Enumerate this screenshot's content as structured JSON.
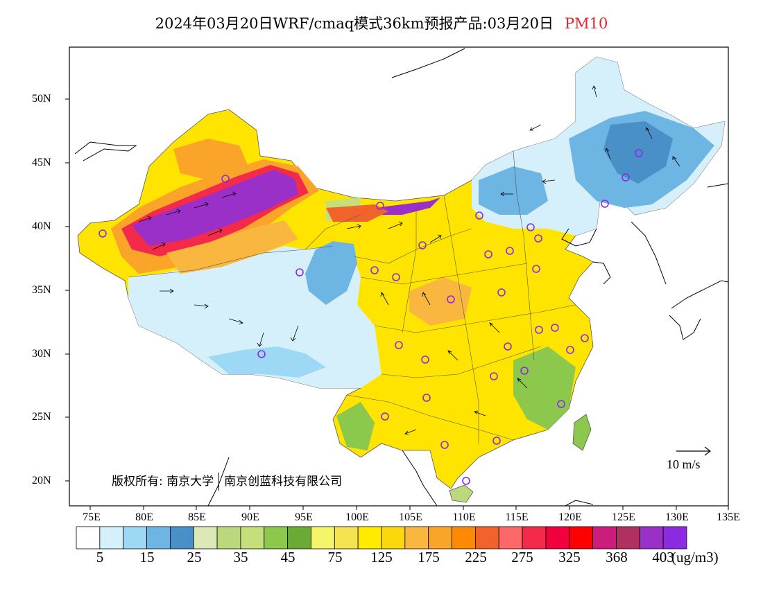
{
  "title": {
    "main": "2024年03月20日WRF/cmaq模式36km预报产品:03月20日",
    "variable": "PM10"
  },
  "lat_labels": [
    "50N",
    "45N",
    "40N",
    "35N",
    "30N",
    "25N",
    "20N"
  ],
  "lon_labels": [
    "75E",
    "80E",
    "85E",
    "90E",
    "95E",
    "100E",
    "105E",
    "110E",
    "115E",
    "120E",
    "125E",
    "130E",
    "135E"
  ],
  "colorbar": {
    "colors": [
      "#ffffff",
      "#d6f0fb",
      "#9dd8f5",
      "#6db5e2",
      "#4a90c8",
      "#dce9b6",
      "#bcd87c",
      "#c5e07a",
      "#8cc84b",
      "#6aaa35",
      "#f5f56a",
      "#f3e34e",
      "#ffeb00",
      "#fbd80b",
      "#f9b73f",
      "#faa52a",
      "#fc8a05",
      "#f2632b",
      "#ff6868",
      "#f42a4a",
      "#f2003e",
      "#ff0000",
      "#cc1c7c",
      "#b03060",
      "#9a30c8",
      "#8a2be2"
    ],
    "labels": [
      "5",
      "15",
      "25",
      "35",
      "45",
      "75",
      "125",
      "175",
      "225",
      "275",
      "325",
      "368",
      "403"
    ],
    "unit": "(ug/m3)"
  },
  "wind_scale": {
    "label": "10 m/s"
  },
  "copyright": {
    "owner": "版权所有: 南京大学",
    "partner": "南京创蓝科技有限公司"
  }
}
